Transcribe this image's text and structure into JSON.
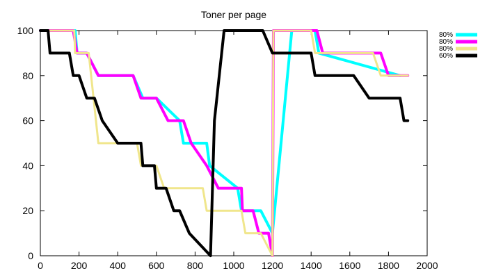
{
  "chart_data": {
    "type": "line",
    "title": "Toner per page",
    "xlim": [
      0,
      2000
    ],
    "ylim": [
      0,
      100
    ],
    "x_ticks": [
      0,
      200,
      400,
      600,
      800,
      1000,
      1200,
      1400,
      1600,
      1800,
      2000
    ],
    "y_ticks": [
      0,
      20,
      40,
      60,
      80,
      100
    ],
    "legend_position": "top-right",
    "grid": false,
    "series": [
      {
        "name": "80%",
        "color": "#00ffff",
        "x": [
          0,
          180,
          190,
          240,
          300,
          480,
          530,
          600,
          720,
          740,
          860,
          875,
          1020,
          1040,
          1050,
          1140,
          1200,
          1300,
          1420,
          1440,
          1860
        ],
        "y": [
          100,
          100,
          90,
          90,
          80,
          80,
          70,
          70,
          60,
          50,
          50,
          40,
          30,
          20,
          20,
          20,
          10,
          100,
          100,
          90,
          80
        ]
      },
      {
        "name": "80%",
        "color": "#ff00ff",
        "x": [
          0,
          170,
          190,
          240,
          300,
          480,
          520,
          600,
          660,
          740,
          780,
          860,
          920,
          1040,
          1045,
          1100,
          1130,
          1180,
          1200,
          1205,
          1430,
          1460,
          1480,
          1620,
          1760,
          1800,
          1860,
          1900
        ],
        "y": [
          100,
          100,
          90,
          90,
          80,
          80,
          70,
          70,
          60,
          60,
          50,
          40,
          30,
          30,
          20,
          20,
          10,
          10,
          0,
          100,
          100,
          90,
          90,
          90,
          90,
          80,
          80,
          80
        ]
      },
      {
        "name": "80%",
        "color": "#f0e68c",
        "x": [
          0,
          175,
          180,
          250,
          300,
          500,
          520,
          600,
          640,
          840,
          860,
          1040,
          1060,
          1140,
          1200,
          1205,
          1400,
          1420,
          1720,
          1760,
          1900
        ],
        "y": [
          100,
          100,
          90,
          90,
          50,
          50,
          40,
          40,
          30,
          30,
          20,
          20,
          10,
          10,
          0,
          100,
          100,
          90,
          90,
          80,
          80
        ]
      },
      {
        "name": "60%",
        "color": "#000000",
        "x": [
          0,
          40,
          50,
          150,
          170,
          200,
          240,
          280,
          320,
          400,
          420,
          520,
          530,
          590,
          600,
          650,
          690,
          720,
          770,
          880,
          900,
          950,
          1000,
          1150,
          1200,
          1400,
          1420,
          1480,
          1620,
          1700,
          1820,
          1860,
          1880,
          1900
        ],
        "y": [
          100,
          100,
          90,
          90,
          80,
          80,
          70,
          70,
          60,
          50,
          50,
          50,
          40,
          40,
          30,
          30,
          20,
          20,
          10,
          0,
          60,
          100,
          100,
          100,
          90,
          90,
          80,
          80,
          80,
          70,
          70,
          70,
          60,
          60
        ]
      }
    ]
  }
}
